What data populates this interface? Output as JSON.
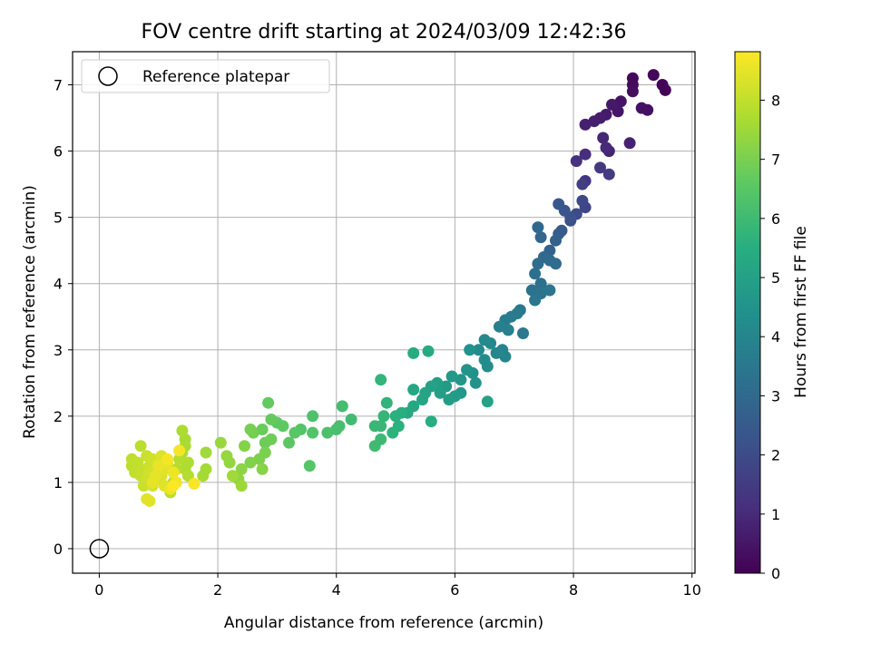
{
  "chart_data": {
    "type": "scatter",
    "title": "FOV centre drift starting at 2024/03/09 12:42:36",
    "xlabel": "Angular distance from reference (arcmin)",
    "ylabel": "Rotation from reference (arcmin)",
    "xlim": [
      -0.45,
      10.05
    ],
    "ylim": [
      -0.37,
      7.5
    ],
    "xticks": [
      0,
      2,
      4,
      6,
      8,
      10
    ],
    "yticks": [
      0,
      1,
      2,
      3,
      4,
      5,
      6,
      7
    ],
    "grid": true,
    "legend": {
      "placement": "upper-left",
      "entries": [
        {
          "label": "Reference platepar",
          "marker": "open-circle"
        }
      ]
    },
    "reference_point": {
      "x": 0,
      "y": 0
    },
    "colorbar": {
      "label": "Hours from first FF file",
      "range": [
        0,
        8.82
      ],
      "ticks": [
        0,
        1,
        2,
        3,
        4,
        5,
        6,
        7,
        8
      ],
      "colormap": "viridis"
    },
    "series": [
      {
        "points": [
          [
            9.55,
            6.92,
            0.05
          ],
          [
            9.5,
            7.0,
            0.1
          ],
          [
            9.35,
            7.15,
            0.15
          ],
          [
            9.0,
            7.1,
            0.2
          ],
          [
            9.0,
            7.0,
            0.25
          ],
          [
            9.0,
            6.9,
            0.3
          ],
          [
            9.25,
            6.62,
            0.35
          ],
          [
            9.15,
            6.65,
            0.4
          ],
          [
            8.8,
            6.75,
            0.45
          ],
          [
            8.75,
            6.6,
            0.5
          ],
          [
            8.65,
            6.7,
            0.55
          ],
          [
            8.55,
            6.55,
            0.6
          ],
          [
            8.45,
            6.5,
            0.65
          ],
          [
            8.35,
            6.45,
            0.7
          ],
          [
            8.2,
            6.4,
            0.75
          ],
          [
            8.95,
            6.12,
            0.8
          ],
          [
            8.6,
            6.0,
            0.85
          ],
          [
            8.5,
            6.2,
            0.9
          ],
          [
            8.55,
            6.05,
            1.0
          ],
          [
            8.2,
            5.95,
            1.1
          ],
          [
            8.05,
            5.85,
            1.2
          ],
          [
            8.2,
            5.55,
            1.3
          ],
          [
            8.45,
            5.75,
            1.4
          ],
          [
            8.6,
            5.65,
            1.5
          ],
          [
            8.15,
            5.5,
            1.6
          ],
          [
            8.2,
            5.15,
            1.8
          ],
          [
            8.15,
            5.25,
            1.9
          ],
          [
            8.05,
            5.05,
            2.0
          ],
          [
            7.95,
            4.95,
            2.1
          ],
          [
            7.95,
            5.0,
            2.2
          ],
          [
            7.85,
            5.1,
            2.3
          ],
          [
            7.75,
            5.2,
            2.4
          ],
          [
            7.8,
            4.8,
            2.5
          ],
          [
            7.75,
            4.75,
            2.6
          ],
          [
            7.7,
            4.65,
            2.7
          ],
          [
            7.6,
            4.5,
            2.8
          ],
          [
            7.45,
            4.7,
            2.9
          ],
          [
            7.4,
            4.85,
            2.95
          ],
          [
            7.5,
            4.4,
            3.0
          ],
          [
            7.6,
            4.35,
            3.05
          ],
          [
            7.7,
            4.3,
            3.1
          ],
          [
            7.4,
            4.3,
            3.15
          ],
          [
            7.35,
            4.15,
            3.2
          ],
          [
            7.45,
            4.0,
            3.25
          ],
          [
            7.3,
            3.9,
            3.3
          ],
          [
            7.45,
            3.85,
            3.35
          ],
          [
            7.6,
            3.9,
            3.4
          ],
          [
            7.35,
            3.75,
            3.45
          ],
          [
            7.1,
            3.6,
            3.5
          ],
          [
            7.15,
            3.25,
            3.55
          ],
          [
            7.05,
            3.55,
            3.6
          ],
          [
            6.95,
            3.5,
            3.65
          ],
          [
            6.85,
            3.45,
            3.7
          ],
          [
            6.9,
            3.3,
            3.8
          ],
          [
            6.75,
            3.35,
            3.85
          ],
          [
            6.8,
            3.0,
            3.9
          ],
          [
            6.85,
            2.9,
            4.0
          ],
          [
            6.7,
            2.95,
            4.05
          ],
          [
            6.6,
            3.1,
            4.1
          ],
          [
            6.5,
            3.15,
            4.15
          ],
          [
            6.4,
            3.0,
            4.2
          ],
          [
            6.55,
            2.75,
            4.25
          ],
          [
            6.5,
            2.85,
            4.3
          ],
          [
            6.3,
            2.65,
            4.4
          ],
          [
            6.25,
            3.0,
            4.45
          ],
          [
            6.35,
            2.5,
            4.5
          ],
          [
            6.2,
            2.7,
            4.55
          ],
          [
            6.1,
            2.55,
            4.6
          ],
          [
            6.1,
            2.35,
            4.65
          ],
          [
            5.95,
            2.6,
            4.7
          ],
          [
            5.85,
            2.45,
            4.75
          ],
          [
            6.0,
            2.3,
            4.8
          ],
          [
            5.9,
            2.25,
            4.85
          ],
          [
            5.75,
            2.35,
            4.9
          ],
          [
            5.7,
            2.5,
            4.95
          ],
          [
            6.55,
            2.22,
            5.0
          ],
          [
            5.6,
            2.45,
            5.05
          ],
          [
            5.5,
            2.35,
            5.1
          ],
          [
            5.45,
            2.25,
            5.15
          ],
          [
            5.3,
            2.4,
            5.2
          ],
          [
            5.3,
            2.15,
            5.25
          ],
          [
            5.2,
            2.05,
            5.3
          ],
          [
            5.55,
            2.98,
            5.35
          ],
          [
            5.3,
            2.95,
            5.4
          ],
          [
            5.6,
            1.92,
            5.45
          ],
          [
            5.1,
            2.05,
            5.5
          ],
          [
            5.0,
            2.0,
            5.55
          ],
          [
            5.05,
            1.85,
            5.6
          ],
          [
            4.95,
            1.75,
            5.65
          ],
          [
            4.85,
            2.2,
            5.7
          ],
          [
            4.75,
            2.55,
            5.75
          ],
          [
            4.8,
            2.0,
            5.8
          ],
          [
            4.75,
            1.85,
            5.85
          ],
          [
            4.65,
            1.85,
            5.9
          ],
          [
            4.75,
            1.65,
            5.95
          ],
          [
            4.65,
            1.55,
            6.0
          ],
          [
            4.25,
            1.95,
            6.05
          ],
          [
            4.1,
            2.15,
            6.1
          ],
          [
            4.05,
            1.85,
            6.15
          ],
          [
            4.0,
            1.8,
            6.2
          ],
          [
            3.85,
            1.75,
            6.25
          ],
          [
            3.6,
            2.0,
            6.3
          ],
          [
            3.6,
            1.75,
            6.35
          ],
          [
            3.4,
            1.8,
            6.4
          ],
          [
            3.55,
            1.25,
            6.45
          ],
          [
            3.3,
            1.75,
            6.5
          ],
          [
            3.2,
            1.6,
            6.55
          ],
          [
            3.1,
            1.85,
            6.6
          ],
          [
            3.0,
            1.9,
            6.62
          ],
          [
            2.85,
            2.2,
            6.65
          ],
          [
            2.9,
            1.95,
            6.7
          ],
          [
            2.75,
            1.8,
            6.75
          ],
          [
            2.8,
            1.6,
            6.8
          ],
          [
            2.9,
            1.65,
            6.85
          ],
          [
            2.6,
            1.75,
            6.9
          ],
          [
            2.55,
            1.8,
            6.95
          ],
          [
            2.8,
            1.45,
            7.0
          ],
          [
            2.7,
            1.35,
            7.05
          ],
          [
            2.55,
            1.3,
            7.1
          ],
          [
            2.45,
            1.55,
            7.15
          ],
          [
            2.75,
            1.2,
            7.2
          ],
          [
            2.4,
            1.2,
            7.25
          ],
          [
            2.35,
            1.05,
            7.3
          ],
          [
            2.2,
            1.3,
            7.35
          ],
          [
            2.15,
            1.4,
            7.4
          ],
          [
            2.05,
            1.6,
            7.45
          ],
          [
            2.4,
            0.95,
            7.5
          ],
          [
            2.25,
            1.1,
            7.55
          ],
          [
            1.8,
            1.45,
            7.55
          ],
          [
            1.75,
            1.1,
            7.6
          ],
          [
            1.8,
            1.2,
            7.6
          ],
          [
            1.45,
            1.65,
            7.65
          ],
          [
            1.45,
            1.55,
            7.65
          ],
          [
            1.4,
            1.45,
            7.7
          ],
          [
            1.4,
            1.78,
            7.7
          ],
          [
            1.5,
            1.3,
            7.75
          ],
          [
            1.45,
            1.2,
            7.75
          ],
          [
            1.5,
            1.1,
            7.8
          ],
          [
            1.35,
            1.35,
            7.8
          ],
          [
            1.3,
            1.2,
            7.85
          ],
          [
            1.25,
            1.0,
            7.85
          ],
          [
            1.2,
            0.85,
            7.9
          ],
          [
            0.7,
            1.55,
            7.9
          ],
          [
            0.55,
            1.35,
            7.95
          ],
          [
            0.55,
            1.25,
            7.95
          ],
          [
            0.6,
            1.15,
            8.0
          ],
          [
            0.65,
            1.3,
            8.0
          ],
          [
            0.7,
            1.2,
            8.05
          ],
          [
            0.7,
            1.1,
            8.05
          ],
          [
            0.75,
            0.95,
            8.1
          ],
          [
            0.8,
            1.4,
            8.1
          ],
          [
            0.8,
            1.05,
            8.15
          ],
          [
            0.85,
            1.25,
            8.15
          ],
          [
            0.85,
            1.15,
            8.2
          ],
          [
            0.9,
            1.35,
            8.2
          ],
          [
            0.9,
            0.95,
            8.25
          ],
          [
            0.95,
            1.2,
            8.25
          ],
          [
            1.0,
            1.3,
            8.3
          ],
          [
            1.0,
            1.05,
            8.3
          ],
          [
            1.05,
            1.4,
            8.35
          ],
          [
            1.05,
            1.1,
            8.35
          ],
          [
            1.1,
            1.2,
            8.4
          ],
          [
            1.1,
            0.95,
            8.4
          ],
          [
            0.8,
            0.75,
            8.45
          ],
          [
            0.85,
            0.72,
            8.45
          ],
          [
            0.9,
            1.0,
            8.5
          ],
          [
            0.95,
            1.1,
            8.5
          ],
          [
            1.0,
            1.25,
            8.55
          ],
          [
            1.15,
            1.3,
            8.55
          ],
          [
            1.2,
            0.9,
            8.6
          ],
          [
            1.25,
            1.15,
            8.6
          ],
          [
            1.3,
            1.0,
            8.65
          ],
          [
            1.35,
            1.48,
            8.7
          ],
          [
            1.15,
            1.35,
            8.7
          ],
          [
            1.6,
            0.98,
            8.75
          ],
          [
            1.25,
            0.95,
            8.8
          ]
        ]
      }
    ]
  }
}
